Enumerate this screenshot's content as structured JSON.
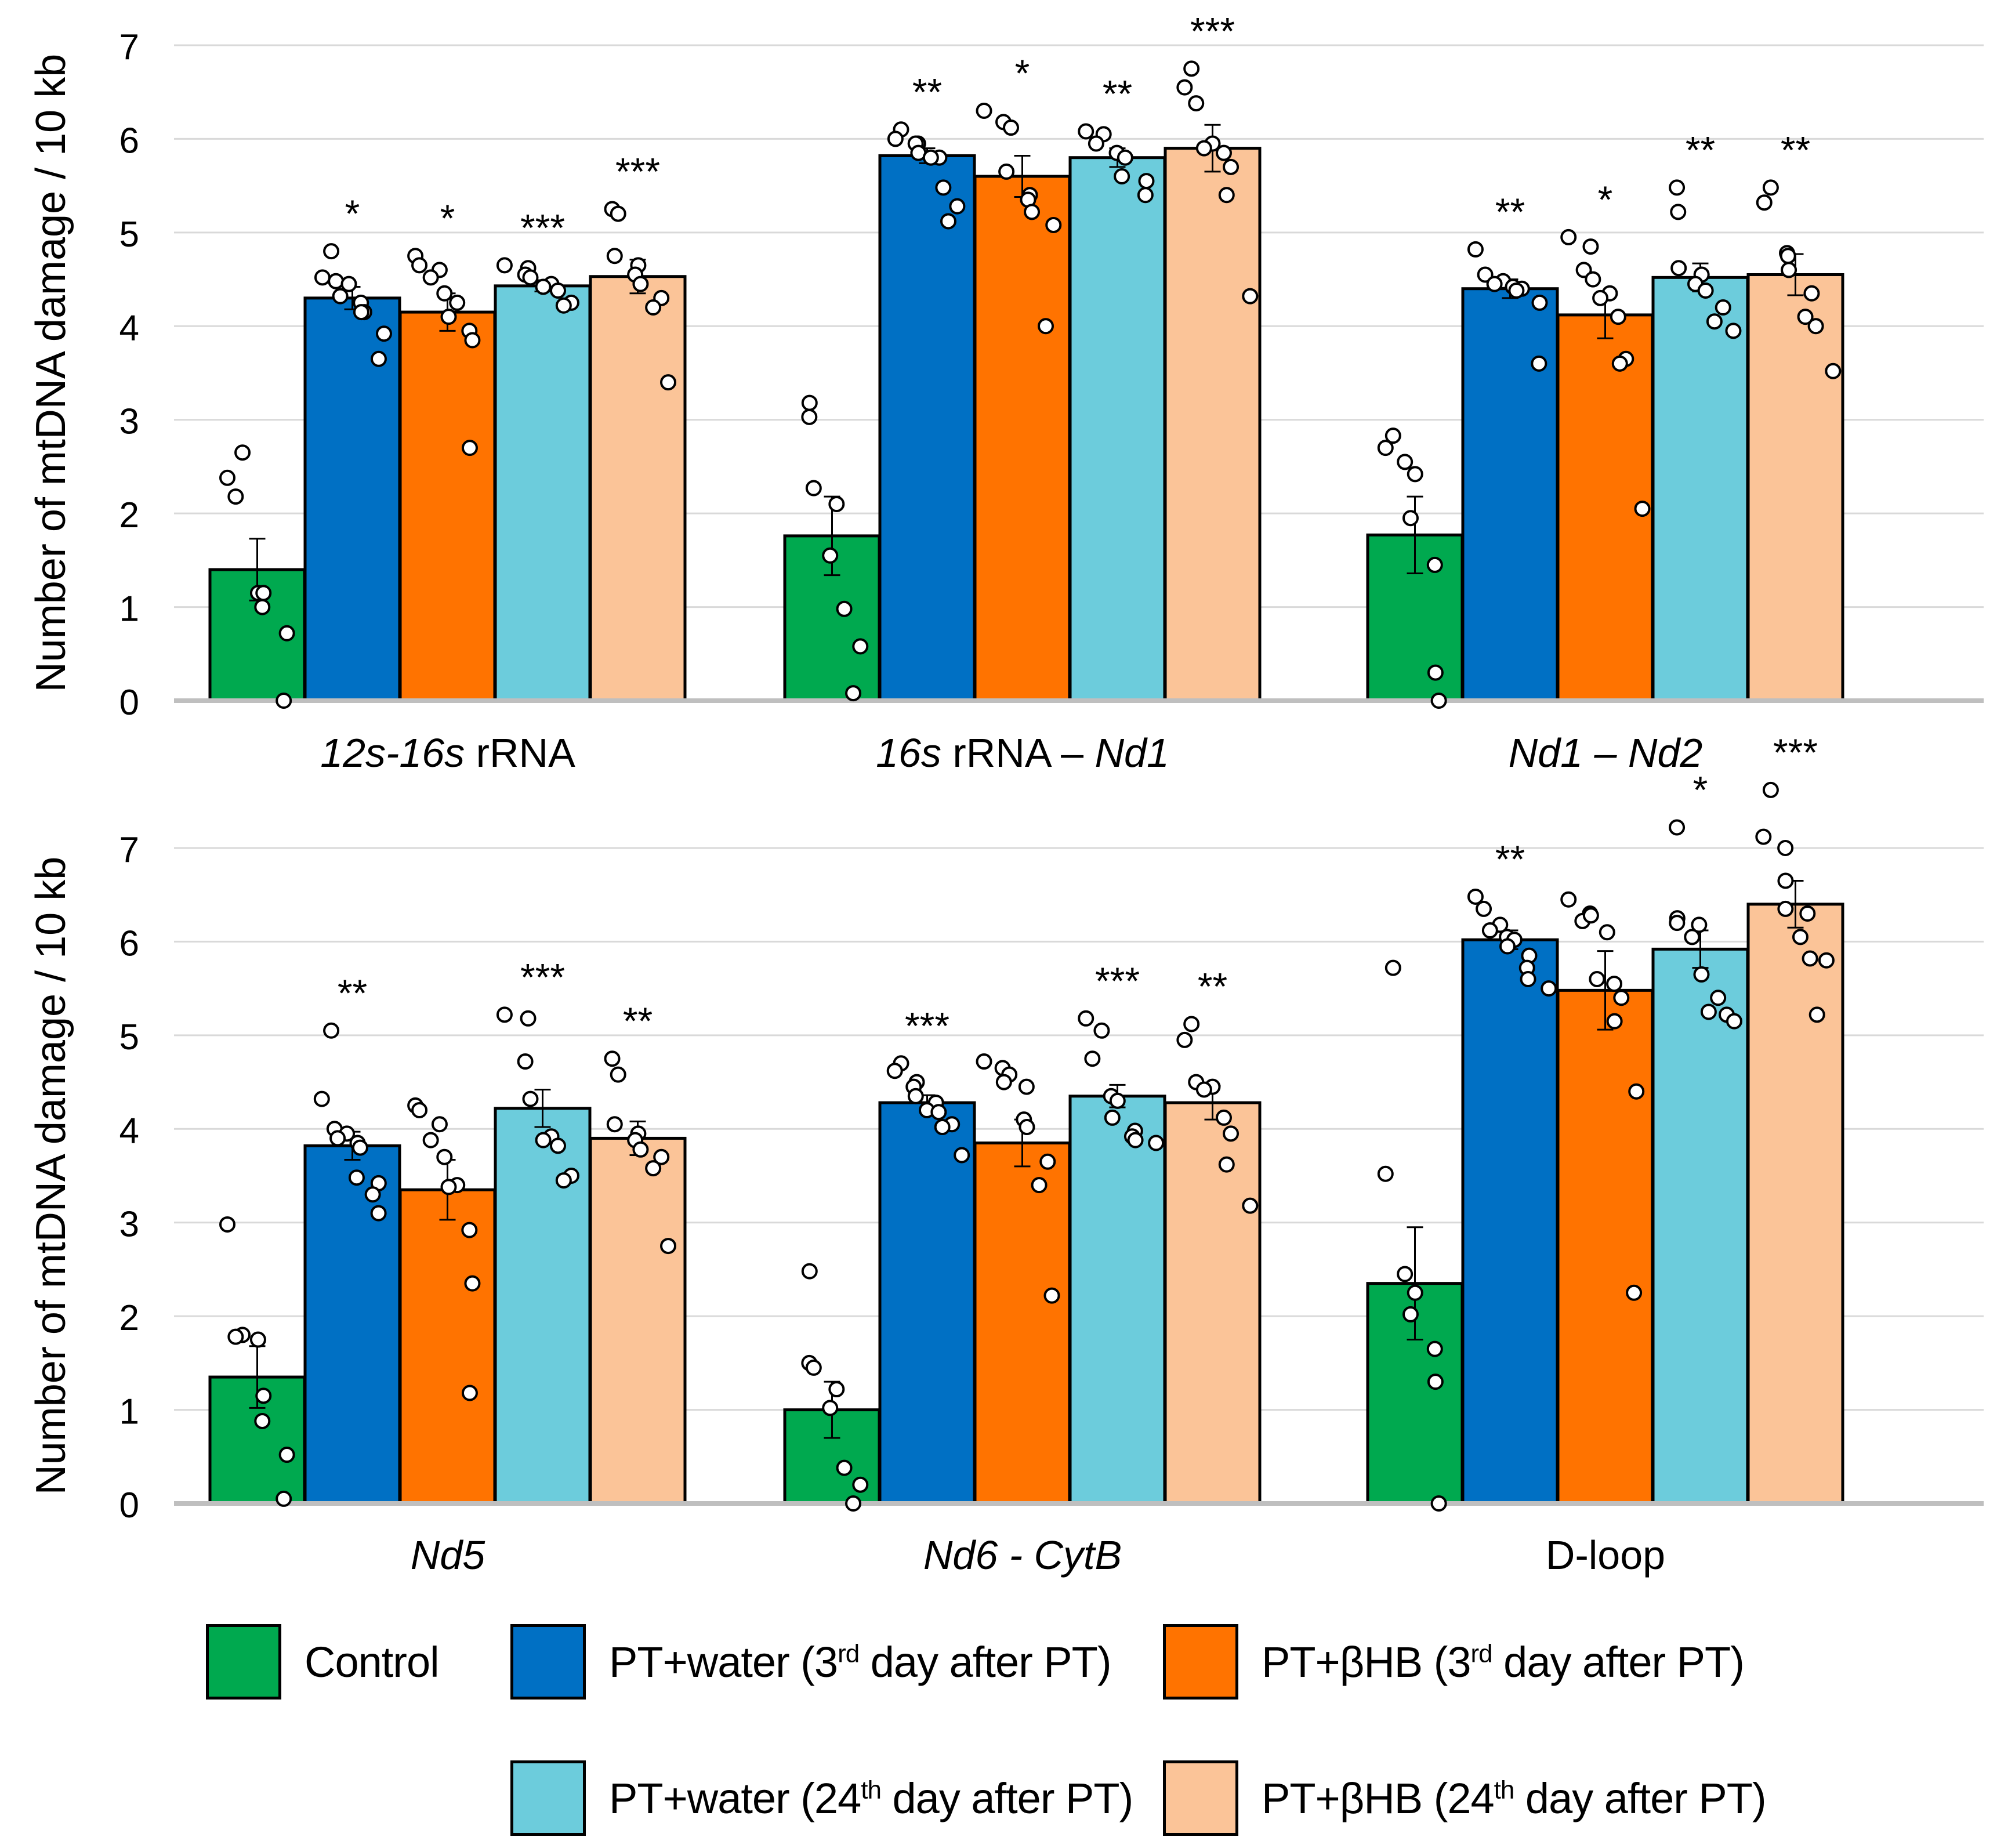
{
  "chart_data": [
    {
      "type": "bar",
      "ylabel": "Number of mtDNA damage / 10 kb",
      "ylim": [
        0,
        7
      ],
      "yticks": [
        "0",
        "1",
        "2",
        "3",
        "4",
        "5",
        "6",
        "7"
      ],
      "grid": true,
      "categories": [
        {
          "segments": [
            {
              "text": "12s-16s",
              "italic": true
            },
            {
              "text": " rRNA",
              "italic": false
            }
          ]
        },
        {
          "segments": [
            {
              "text": "16s",
              "italic": true
            },
            {
              "text": " rRNA – ",
              "italic": false
            },
            {
              "text": "Nd1",
              "italic": true
            }
          ]
        },
        {
          "segments": [
            {
              "text": "Nd1 – Nd2",
              "italic": true
            }
          ]
        }
      ],
      "series": [
        {
          "name": "Control",
          "values": [
            1.4,
            1.76,
            1.77
          ],
          "errors": [
            0.33,
            0.42,
            0.41
          ],
          "significance": [
            "",
            "",
            ""
          ],
          "points": [
            [
              2.38,
              2.65,
              2.18,
              1.15,
              1.15,
              1.0,
              0.72,
              0.0
            ],
            [
              3.18,
              3.03,
              2.27,
              2.1,
              1.55,
              0.98,
              0.58,
              0.08
            ],
            [
              2.83,
              2.7,
              2.55,
              2.42,
              1.95,
              1.45,
              0.3,
              0.0
            ]
          ]
        },
        {
          "name": "PT+water (3rd day after PT)",
          "values": [
            4.3,
            5.82,
            4.4
          ],
          "errors": [
            0.12,
            0.08,
            0.1
          ],
          "significance": [
            "*",
            "**",
            "**"
          ],
          "points": [
            [
              4.8,
              4.52,
              4.48,
              4.45,
              4.32,
              4.25,
              4.15,
              4.15,
              3.92,
              3.65
            ],
            [
              6.1,
              6.0,
              5.95,
              5.95,
              5.85,
              5.8,
              5.8,
              5.48,
              5.28,
              5.12
            ],
            [
              4.82,
              4.55,
              4.48,
              4.45,
              4.42,
              4.4,
              4.38,
              4.25,
              3.6
            ]
          ]
        },
        {
          "name": "PT+βHB (3rd day after PT)",
          "values": [
            4.15,
            5.6,
            4.12
          ],
          "errors": [
            0.2,
            0.22,
            0.25
          ],
          "significance": [
            "*",
            "*",
            "*"
          ],
          "points": [
            [
              4.75,
              4.65,
              4.6,
              4.52,
              4.35,
              4.25,
              4.1,
              3.95,
              3.85,
              2.7
            ],
            [
              6.3,
              6.18,
              6.12,
              5.65,
              5.4,
              5.35,
              5.22,
              5.08,
              4.0
            ],
            [
              4.95,
              4.85,
              4.6,
              4.5,
              4.35,
              4.3,
              4.1,
              3.65,
              3.6,
              2.05
            ]
          ]
        },
        {
          "name": "PT+water (24th day after PT)",
          "values": [
            4.43,
            5.8,
            4.52
          ],
          "errors": [
            0.06,
            0.1,
            0.15
          ],
          "significance": [
            "***",
            "**",
            "**"
          ],
          "points": [
            [
              4.65,
              4.62,
              4.55,
              4.52,
              4.45,
              4.42,
              4.38,
              4.25,
              4.22
            ],
            [
              6.08,
              6.05,
              5.95,
              5.85,
              5.8,
              5.6,
              5.55,
              5.4
            ],
            [
              5.48,
              5.22,
              4.62,
              4.55,
              4.45,
              4.38,
              4.2,
              4.05,
              3.95
            ]
          ]
        },
        {
          "name": "PT+βHB (24th day after PT)",
          "values": [
            4.53,
            5.9,
            4.55
          ],
          "errors": [
            0.18,
            0.25,
            0.22
          ],
          "significance": [
            "***",
            "***",
            "**"
          ],
          "points": [
            [
              5.25,
              5.2,
              4.75,
              4.65,
              4.55,
              4.45,
              4.3,
              4.2,
              3.4
            ],
            [
              6.75,
              6.55,
              6.38,
              5.95,
              5.9,
              5.85,
              5.7,
              5.4,
              4.32
            ],
            [
              5.48,
              5.32,
              4.78,
              4.75,
              4.6,
              4.35,
              4.1,
              4.0,
              3.52
            ]
          ]
        }
      ]
    },
    {
      "type": "bar",
      "ylabel": "Number of mtDNA damage / 10 kb",
      "ylim": [
        0,
        7
      ],
      "yticks": [
        "0",
        "1",
        "2",
        "3",
        "4",
        "5",
        "6",
        "7"
      ],
      "grid": true,
      "categories": [
        {
          "segments": [
            {
              "text": "Nd5",
              "italic": true
            }
          ]
        },
        {
          "segments": [
            {
              "text": "Nd6 - CytB",
              "italic": true
            }
          ]
        },
        {
          "segments": [
            {
              "text": "D-loop",
              "italic": false
            }
          ]
        }
      ],
      "series": [
        {
          "name": "Control",
          "values": [
            1.35,
            1.0,
            2.35
          ],
          "errors": [
            0.33,
            0.3,
            0.6
          ],
          "significance": [
            "",
            "",
            ""
          ],
          "points": [
            [
              2.98,
              1.8,
              1.78,
              1.75,
              1.15,
              0.88,
              0.52,
              0.05
            ],
            [
              2.48,
              1.5,
              1.45,
              1.22,
              1.02,
              0.38,
              0.2,
              0.0
            ],
            [
              5.72,
              3.52,
              2.45,
              2.25,
              2.02,
              1.65,
              1.3,
              0.0
            ]
          ]
        },
        {
          "name": "PT+water (3rd day after PT)",
          "values": [
            3.82,
            4.28,
            6.02
          ],
          "errors": [
            0.15,
            0.08,
            0.1
          ],
          "significance": [
            "**",
            "***",
            "**"
          ],
          "points": [
            [
              5.05,
              4.32,
              4.0,
              3.95,
              3.9,
              3.85,
              3.8,
              3.48,
              3.42,
              3.3,
              3.1
            ],
            [
              4.7,
              4.62,
              4.5,
              4.45,
              4.35,
              4.28,
              4.2,
              4.18,
              4.05,
              4.02,
              3.72
            ],
            [
              6.48,
              6.35,
              6.18,
              6.12,
              6.05,
              6.02,
              5.95,
              5.85,
              5.72,
              5.6,
              5.5
            ]
          ]
        },
        {
          "name": "PT+βHB (3rd day after PT)",
          "values": [
            3.35,
            3.85,
            5.48
          ],
          "errors": [
            0.32,
            0.25,
            0.42
          ],
          "significance": [
            "",
            "",
            ""
          ],
          "points": [
            [
              4.25,
              4.2,
              4.05,
              3.88,
              3.7,
              3.4,
              3.38,
              2.92,
              2.35,
              1.18
            ],
            [
              4.72,
              4.65,
              4.58,
              4.5,
              4.45,
              4.1,
              4.02,
              3.65,
              3.4,
              2.22
            ],
            [
              6.45,
              6.3,
              6.22,
              6.28,
              6.1,
              5.6,
              5.55,
              5.4,
              5.15,
              4.4,
              2.25
            ]
          ]
        },
        {
          "name": "PT+water (24th day after PT)",
          "values": [
            4.22,
            4.35,
            5.92
          ],
          "errors": [
            0.2,
            0.12,
            0.2
          ],
          "significance": [
            "***",
            "***",
            "*"
          ],
          "points": [
            [
              5.22,
              5.18,
              4.72,
              4.32,
              3.92,
              3.88,
              3.82,
              3.5,
              3.45
            ],
            [
              5.18,
              5.05,
              4.75,
              4.35,
              4.3,
              4.12,
              3.98,
              3.92,
              3.88,
              3.85
            ],
            [
              7.22,
              6.25,
              6.2,
              6.18,
              6.05,
              5.65,
              5.4,
              5.25,
              5.22,
              5.15
            ]
          ]
        },
        {
          "name": "PT+βHB (24th day after PT)",
          "values": [
            3.9,
            4.28,
            6.4
          ],
          "errors": [
            0.18,
            0.18,
            0.25
          ],
          "significance": [
            "**",
            "**",
            "***"
          ],
          "points": [
            [
              4.75,
              4.58,
              4.05,
              3.95,
              3.88,
              3.78,
              3.7,
              3.58,
              2.75
            ],
            [
              5.12,
              4.95,
              4.5,
              4.45,
              4.42,
              4.12,
              3.95,
              3.62,
              3.18
            ],
            [
              7.62,
              7.12,
              7.0,
              6.65,
              6.35,
              6.3,
              6.05,
              5.82,
              5.8,
              5.22
            ]
          ]
        }
      ]
    }
  ],
  "legend": {
    "items": [
      {
        "label": "Control",
        "color": "#00A94F"
      },
      {
        "label_pre": "PT+water (3",
        "label_sup": "rd",
        "label_post": " day after PT)",
        "color": "#0070C4"
      },
      {
        "label_pre": "PT+βHB (3",
        "label_sup": "rd",
        "label_post": " day after PT)",
        "color": "#FF7300"
      },
      {
        "label_pre": "PT+water (24",
        "label_sup": "th",
        "label_post": " day after PT)",
        "color": "#6CCCDC"
      },
      {
        "label_pre": "PT+βHB (24",
        "label_sup": "th",
        "label_post": " day after PT)",
        "color": "#FBC498"
      }
    ]
  },
  "colors": {
    "grid": "#D9D9D9",
    "axis": "#BFBFBF",
    "bar_border": "#000000",
    "point_fill": "#FFFFFF"
  }
}
